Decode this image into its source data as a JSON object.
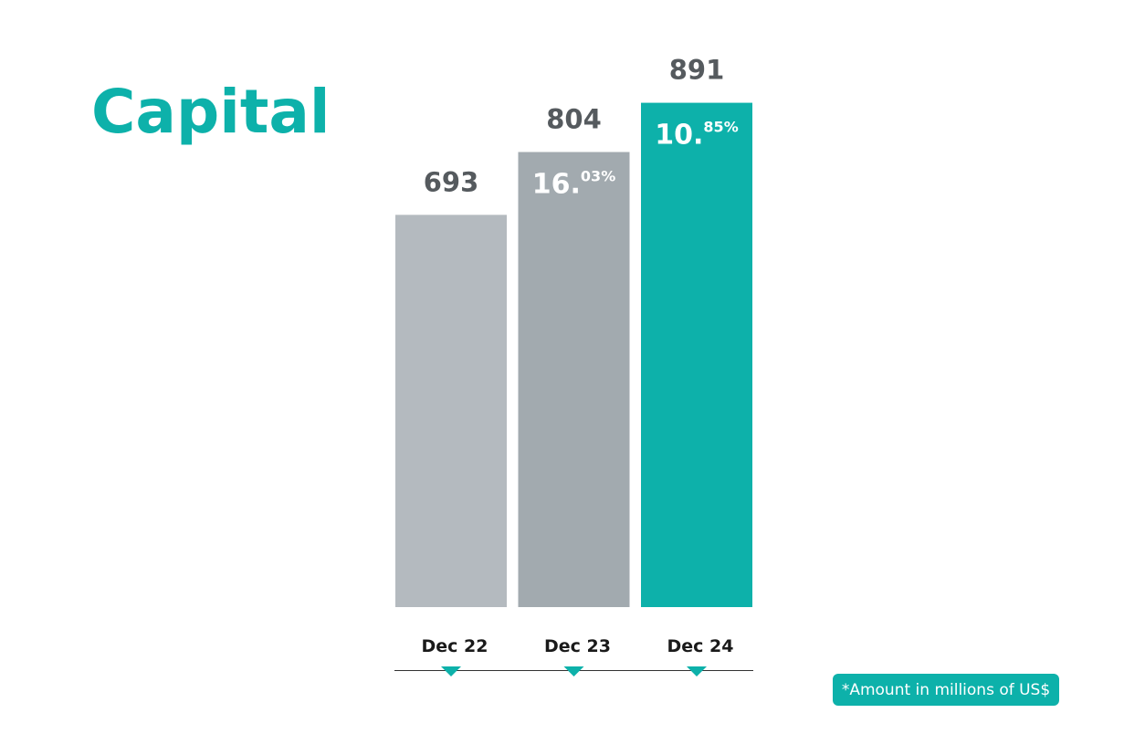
{
  "chart_data": {
    "type": "bar",
    "title": "Capital",
    "categories": [
      "Dec 22",
      "Dec 23",
      "Dec 24"
    ],
    "values": [
      693,
      804,
      891
    ],
    "colors": [
      "#b4babf",
      "#a2aaaf",
      "#0db1aa"
    ],
    "growth_labels": [
      null,
      {
        "whole": "16.",
        "fraction": "03%"
      },
      {
        "whole": "10.",
        "fraction": "85%"
      }
    ],
    "note": "*Amount in millions of US$"
  }
}
